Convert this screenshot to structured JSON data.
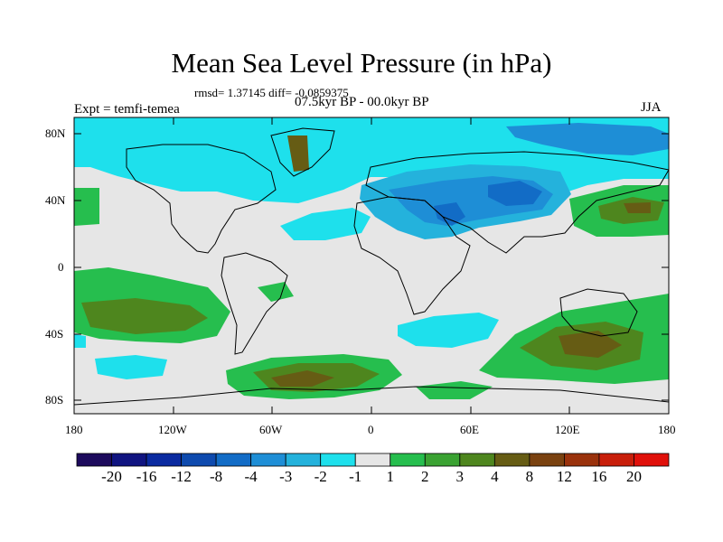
{
  "title": "Mean Sea Level Pressure (in hPa)",
  "stats_line": "rmsd= 1.37145 diff= -0.0859375",
  "period": "07.5kyr BP - 00.0kyr BP",
  "experiment": "Expt = temfi-temea",
  "season": "JJA",
  "lat_ticks": [
    "80N",
    "40N",
    "0",
    "40S",
    "80S"
  ],
  "lon_ticks": [
    "180",
    "120W",
    "60W",
    "0",
    "60E",
    "120E",
    "180"
  ],
  "colorbar": {
    "labels": [
      "-20",
      "-16",
      "-12",
      "-8",
      "-4",
      "-3",
      "-2",
      "-1",
      "1",
      "2",
      "3",
      "4",
      "8",
      "12",
      "16",
      "20"
    ],
    "colors": [
      "#1c0a5c",
      "#101480",
      "#0a2aa0",
      "#0e4aae",
      "#126cc6",
      "#1e8ed6",
      "#24b2dc",
      "#1ee0ec",
      "#e6e6e6",
      "#26be4e",
      "#3aa232",
      "#4e861e",
      "#665c14",
      "#7a4210",
      "#9a320c",
      "#c81e0a",
      "#e0100a"
    ]
  }
}
